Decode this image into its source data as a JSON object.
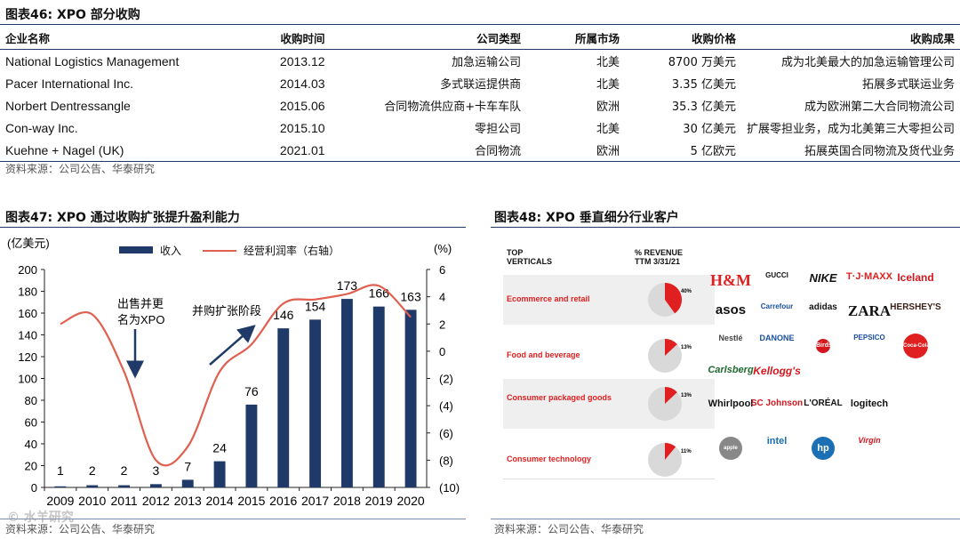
{
  "fig46": {
    "title": "图表46: XPO 部分收购",
    "headers": [
      "企业名称",
      "收购时间",
      "公司类型",
      "所属市场",
      "收购价格",
      "收购成果"
    ],
    "rows": [
      [
        "National Logistics Management",
        "2013.12",
        "加急运输公司",
        "北美",
        "8700 万美元",
        "成为北美最大的加急运输管理公司"
      ],
      [
        "Pacer International Inc.",
        "2014.03",
        "多式联运提供商",
        "北美",
        "3.35 亿美元",
        "拓展多式联运业务"
      ],
      [
        "Norbert Dentressangle",
        "2015.06",
        "合同物流供应商+卡车车队",
        "欧洲",
        "35.3 亿美元",
        "成为欧洲第二大合同物流公司"
      ],
      [
        "Con-way Inc.",
        "2015.10",
        "零担公司",
        "北美",
        "30 亿美元",
        "扩展零担业务，成为北美第三大零担公司"
      ],
      [
        "Kuehne + Nagel (UK)",
        "2021.01",
        "合同物流",
        "欧洲",
        "5 亿欧元",
        "拓展英国合同物流及货代业务"
      ]
    ],
    "source": "资料来源：公司公告、华泰研究"
  },
  "fig47": {
    "title": "图表47: XPO 通过收购扩张提升盈利能力",
    "source": "资料来源：公司公告、华泰研究",
    "watermark": "© 水羊研究",
    "legend": {
      "revenue": "收入",
      "margin": "经营利润率（右轴）"
    },
    "annotations": {
      "divest_line1": "出售并更",
      "divest_line2": "名为XPO",
      "expansion": "并购扩张阶段"
    }
  },
  "chart_data": {
    "type": "bar",
    "categories": [
      "2009",
      "2010",
      "2011",
      "2012",
      "2013",
      "2014",
      "2015",
      "2016",
      "2017",
      "2018",
      "2019",
      "2020"
    ],
    "series": [
      {
        "name": "收入",
        "type": "bar",
        "axis": "left",
        "values": [
          1,
          2,
          2,
          3,
          7,
          24,
          76,
          146,
          154,
          173,
          166,
          163
        ],
        "color": "#1f3a68"
      },
      {
        "name": "经营利润率（右轴）",
        "type": "line",
        "axis": "right",
        "values": [
          2.0,
          2.7,
          -1.5,
          -8.0,
          -7.0,
          -1.5,
          0.5,
          3.5,
          3.8,
          4.2,
          4.8,
          2.5
        ],
        "color": "#e06050"
      }
    ],
    "ylabel_left": "(亿美元)",
    "ylabel_right": "(%)",
    "ylim_left": [
      0,
      200
    ],
    "ylim_right": [
      -10,
      6
    ],
    "yticks_left": [
      "0",
      "20",
      "40",
      "60",
      "80",
      "100",
      "120",
      "140",
      "160",
      "180",
      "200"
    ],
    "yticks_right": [
      "(10)",
      "(8)",
      "(6)",
      "(4)",
      "(2)",
      "0",
      "2",
      "4",
      "6"
    ],
    "legend_position": "top"
  },
  "fig48": {
    "title": "图表48: XPO 垂直细分行业客户",
    "source": "资料来源：公司公告、华泰研究",
    "col1": [
      "TOP",
      "VERTICALS"
    ],
    "col2": [
      "% REVENUE",
      "TTM 3/31/21"
    ],
    "verticals": [
      {
        "label": "Ecommerce and retail",
        "pct": 40,
        "pct_label": "40%"
      },
      {
        "label": "Food and beverage",
        "pct": 13,
        "pct_label": "13%"
      },
      {
        "label": "Consumer packaged goods",
        "pct": 13,
        "pct_label": "13%"
      },
      {
        "label": "Consumer technology",
        "pct": 11,
        "pct_label": "11%"
      }
    ],
    "accent": "#e02020",
    "brands": [
      [
        "H&M",
        "GUCCI",
        "NIKE",
        "T·J·MAXX",
        "Iceland"
      ],
      [
        "asos",
        "Carrefour",
        "adidas",
        "ZARA",
        "HERSHEY'S"
      ],
      [
        "Nestlé",
        "DANONE",
        "Birds Eye",
        "PEPSICO",
        "Coca-Cola"
      ],
      [
        "Carlsberg",
        "Kellogg's",
        "",
        "",
        ""
      ],
      [
        "Whirlpool",
        "SC Johnson",
        "L'ORÉAL",
        "logitech",
        ""
      ],
      [
        "apple",
        "intel",
        "hp",
        "Virgin",
        ""
      ]
    ]
  }
}
